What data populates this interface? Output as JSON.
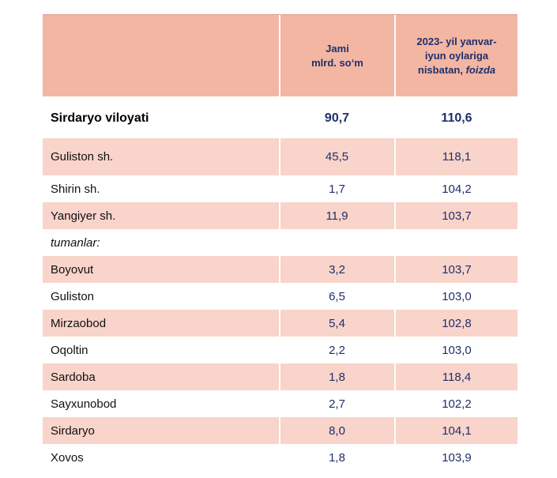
{
  "header": {
    "col2_line1": "Jami",
    "col2_line2": "mlrd. so‘m",
    "col3_line1": "2023- yil yanvar-",
    "col3_line2": "iyun oylariga",
    "col3_line3": "nisbatan, ",
    "col3_italic": "foizda"
  },
  "region": {
    "name": "Sirdaryo viloyati",
    "total": "90,7",
    "percent": "110,6"
  },
  "cities": [
    {
      "name": "Guliston  sh.",
      "total": "45,5",
      "percent": "118,1"
    },
    {
      "name": "Shirin sh.",
      "total": "1,7",
      "percent": "104,2"
    },
    {
      "name": "Yangiyer sh.",
      "total": "11,9",
      "percent": "103,7"
    }
  ],
  "districts_label": "tumanlar:",
  "districts": [
    {
      "name": "Boyovut",
      "total": "3,2",
      "percent": "103,7"
    },
    {
      "name": "Guliston",
      "total": "6,5",
      "percent": "103,0"
    },
    {
      "name": "Mirzaobod",
      "total": "5,4",
      "percent": "102,8"
    },
    {
      "name": "Oqoltin",
      "total": "2,2",
      "percent": "103,0"
    },
    {
      "name": "Sardoba",
      "total": "1,8",
      "percent": "118,4"
    },
    {
      "name": "Sayxunobod",
      "total": "2,7",
      "percent": "102,2"
    },
    {
      "name": "Sirdaryo",
      "total": "8,0",
      "percent": "104,1"
    },
    {
      "name": "Xovos",
      "total": "1,8",
      "percent": "103,9"
    }
  ]
}
